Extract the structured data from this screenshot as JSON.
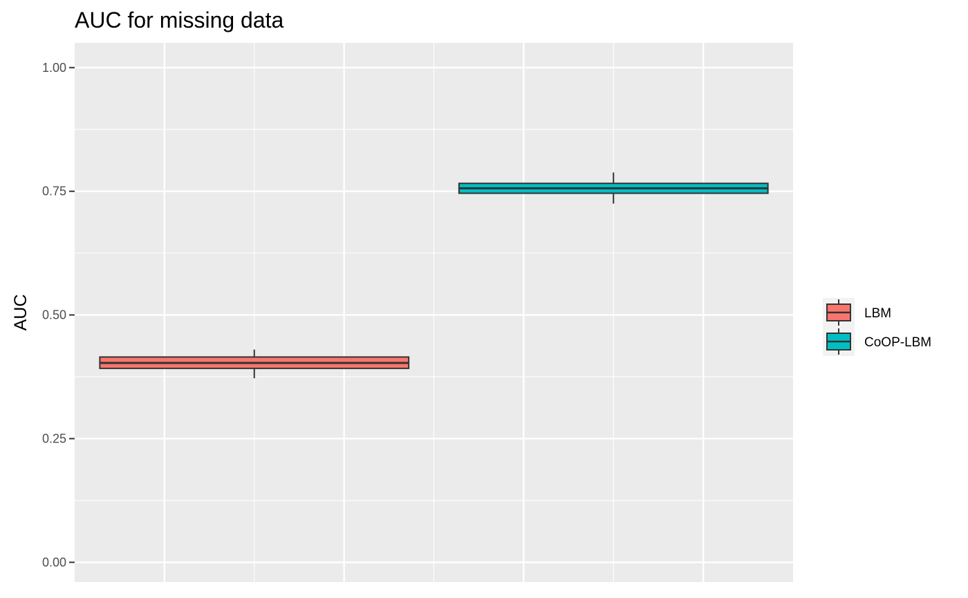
{
  "chart_data": {
    "type": "boxplot",
    "title": "AUC for missing data",
    "xlabel": "",
    "ylabel": "AUC",
    "ylim": [
      -0.04,
      1.05
    ],
    "y_ticks": [
      "0.00",
      "0.25",
      "0.50",
      "0.75",
      "1.00"
    ],
    "y_tick_values": [
      0,
      0.25,
      0.5,
      0.75,
      1.0
    ],
    "grid": true,
    "legend_position": "right",
    "series": [
      {
        "name": "LBM",
        "color": "#F8766D",
        "min": 0.372,
        "q1": 0.392,
        "median": 0.403,
        "q3": 0.415,
        "max": 0.43
      },
      {
        "name": "CoOP-LBM",
        "color": "#00BFC4",
        "min": 0.725,
        "q1": 0.746,
        "median": 0.756,
        "q3": 0.766,
        "max": 0.788
      }
    ]
  }
}
